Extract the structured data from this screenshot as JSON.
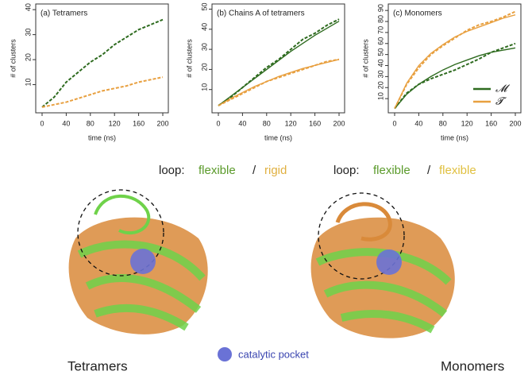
{
  "chart_data": [
    {
      "type": "line",
      "title": "(a) Tetramers",
      "x_label": "time (ns)",
      "y_label": "# of clusters",
      "x": [
        0,
        20,
        40,
        60,
        80,
        100,
        120,
        140,
        160,
        180,
        200
      ],
      "series": [
        {
          "color": "#2e6b1f",
          "style": "dashed",
          "values": [
            1,
            5,
            11,
            15,
            19,
            22,
            26,
            29,
            32,
            34,
            36
          ]
        },
        {
          "color": "#e8a040",
          "style": "dashed",
          "values": [
            1,
            2,
            3,
            4.5,
            6,
            7.5,
            8.5,
            9.5,
            11,
            12,
            13
          ]
        }
      ],
      "xlim": [
        0,
        200
      ],
      "xticks": [
        0,
        40,
        80,
        120,
        160,
        200
      ],
      "ylim": [
        0,
        41
      ],
      "yticks": [
        10,
        20,
        30,
        40
      ]
    },
    {
      "type": "line",
      "title": "(b) Chains A of tetramers",
      "x_label": "time (ns)",
      "y_label": "# of clusters",
      "x": [
        0,
        20,
        40,
        60,
        80,
        100,
        120,
        140,
        160,
        180,
        200
      ],
      "series": [
        {
          "color": "#2e6b1f",
          "style": "dashed",
          "values": [
            2,
            6,
            11,
            16,
            21,
            25,
            30,
            35,
            38,
            42,
            45
          ]
        },
        {
          "color": "#e8a040",
          "style": "dashed",
          "values": [
            2,
            5,
            8,
            11,
            14,
            16,
            18,
            20,
            22,
            24,
            25
          ]
        },
        {
          "color": "#2e6b1f",
          "style": "solid",
          "values": [
            2,
            6.5,
            11,
            15.5,
            20,
            24.5,
            29,
            33,
            37,
            40.5,
            44
          ]
        },
        {
          "color": "#e8a040",
          "style": "solid",
          "values": [
            2,
            5.5,
            8.5,
            11.5,
            14,
            16.5,
            18.5,
            20.5,
            22,
            23.5,
            25
          ]
        }
      ],
      "xlim": [
        0,
        200
      ],
      "xticks": [
        0,
        40,
        80,
        120,
        160,
        200
      ],
      "ylim": [
        0,
        51
      ],
      "yticks": [
        10,
        20,
        30,
        40,
        50
      ]
    },
    {
      "type": "line",
      "title": "(c) Monomers",
      "x_label": "time (ns)",
      "y_label": "# of clusters",
      "x": [
        0,
        20,
        40,
        60,
        80,
        100,
        120,
        140,
        160,
        180,
        200
      ],
      "series": [
        {
          "name": "𝓜",
          "color": "#2e6b1f",
          "style": "dashed",
          "values": [
            1,
            15,
            23,
            28,
            32,
            36,
            41,
            46,
            52,
            56,
            60
          ]
        },
        {
          "name": "𝓣",
          "color": "#e8a040",
          "style": "dashed",
          "values": [
            1,
            23,
            38,
            50,
            58,
            65,
            72,
            77,
            80,
            84,
            89
          ]
        },
        {
          "color": "#2e6b1f",
          "style": "solid",
          "values": [
            1,
            14,
            23,
            30,
            36,
            41,
            45,
            49,
            52,
            54,
            56
          ]
        },
        {
          "color": "#e8a040",
          "style": "solid",
          "values": [
            1,
            24,
            40,
            51,
            59,
            66,
            71,
            75,
            79,
            83,
            86
          ]
        }
      ],
      "xlim": [
        0,
        200
      ],
      "xticks": [
        0,
        40,
        80,
        120,
        160,
        200
      ],
      "ylim": [
        0,
        93
      ],
      "yticks": [
        10,
        20,
        30,
        40,
        50,
        60,
        70,
        80,
        90
      ],
      "legend": "bottom-right"
    }
  ],
  "structures": {
    "left": {
      "loop": "loop:",
      "first": "flexible",
      "slash": "/",
      "second": "rigid",
      "label": "Tetramers"
    },
    "right": {
      "loop": "loop:",
      "first": "flexible",
      "slash": "/",
      "second": "flexible",
      "label": "Monomers"
    },
    "pocket": "catalytic pocket"
  }
}
